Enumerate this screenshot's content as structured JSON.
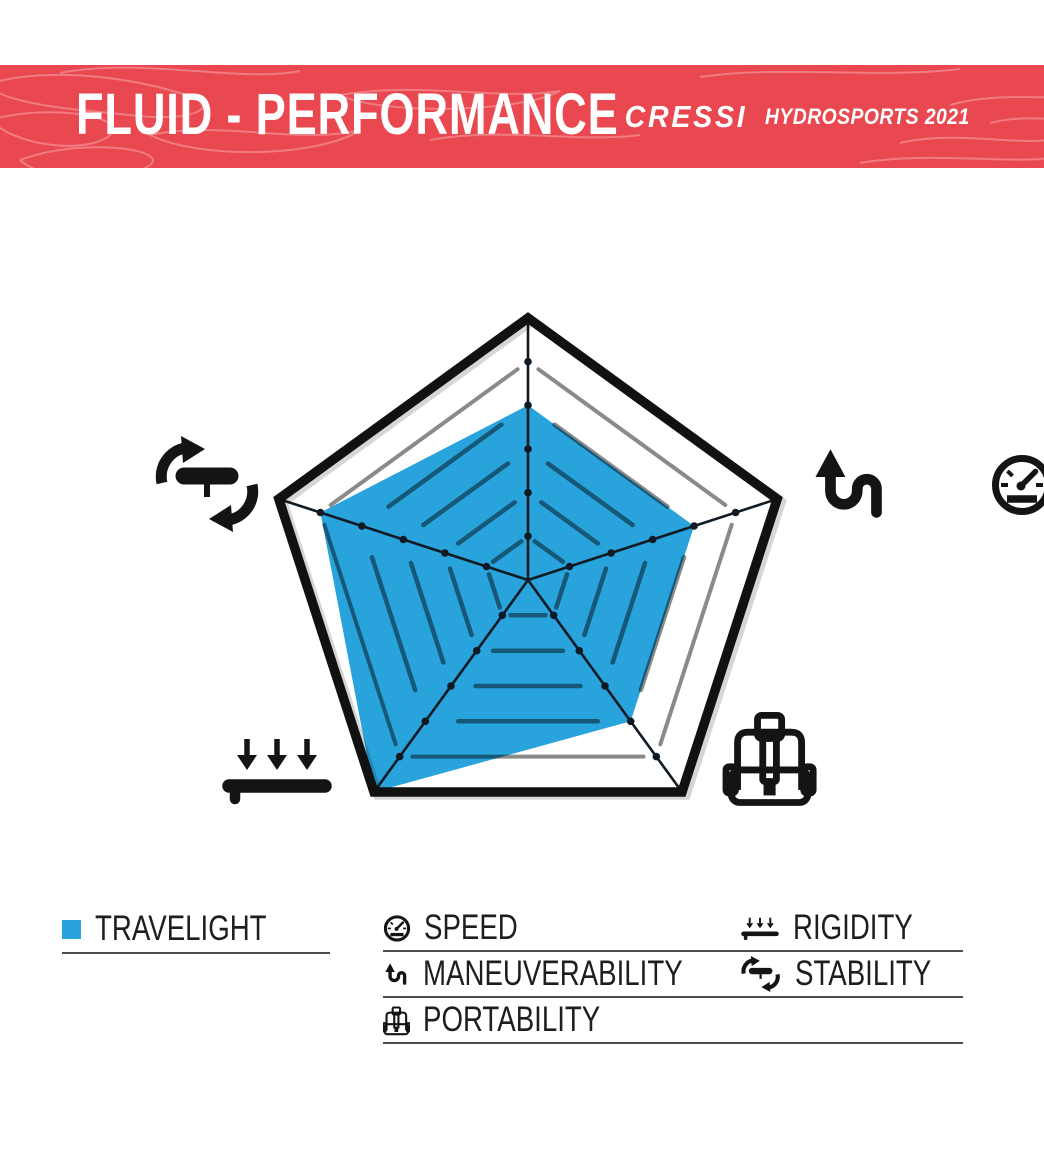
{
  "banner": {
    "title": "FLUID - PERFORMANCE",
    "brand": "CRESSI",
    "subbrand": "HYDROSPORTS 2021",
    "bg_color": "#EA4850"
  },
  "chart_data": {
    "type": "radar",
    "categories": [
      "SPEED",
      "MANEUVERABILITY",
      "PORTABILITY",
      "RIGIDITY",
      "STABILITY"
    ],
    "series": [
      {
        "name": "TRAVELIGHT",
        "values": [
          4,
          4,
          4,
          6,
          5
        ]
      }
    ],
    "scale_max": 6,
    "rings": 6,
    "fill_color": "#29A3DC",
    "grid": {
      "outer_color": "#111111",
      "ring_color": "rgba(0,0,0,0.46)",
      "spoke_color": "#101A24",
      "grid_on": true
    },
    "axis_icons": [
      "speedometer-icon",
      "maneuverability-icon",
      "portability-icon",
      "rigidity-icon",
      "stability-icon"
    ],
    "legend_position": "bottom"
  },
  "legend": {
    "series": {
      "label": "TRAVELIGHT",
      "swatch_color": "#29A3DC"
    },
    "columns": [
      {
        "items": [
          {
            "icon": "speedometer-icon",
            "label": "SPEED"
          },
          {
            "icon": "maneuverability-icon",
            "label": "MANEUVERABILITY"
          },
          {
            "icon": "portability-icon",
            "label": "PORTABILITY"
          }
        ]
      },
      {
        "items": [
          {
            "icon": "rigidity-icon",
            "label": "RIGIDITY"
          },
          {
            "icon": "stability-icon",
            "label": "STABILITY"
          }
        ]
      }
    ]
  }
}
